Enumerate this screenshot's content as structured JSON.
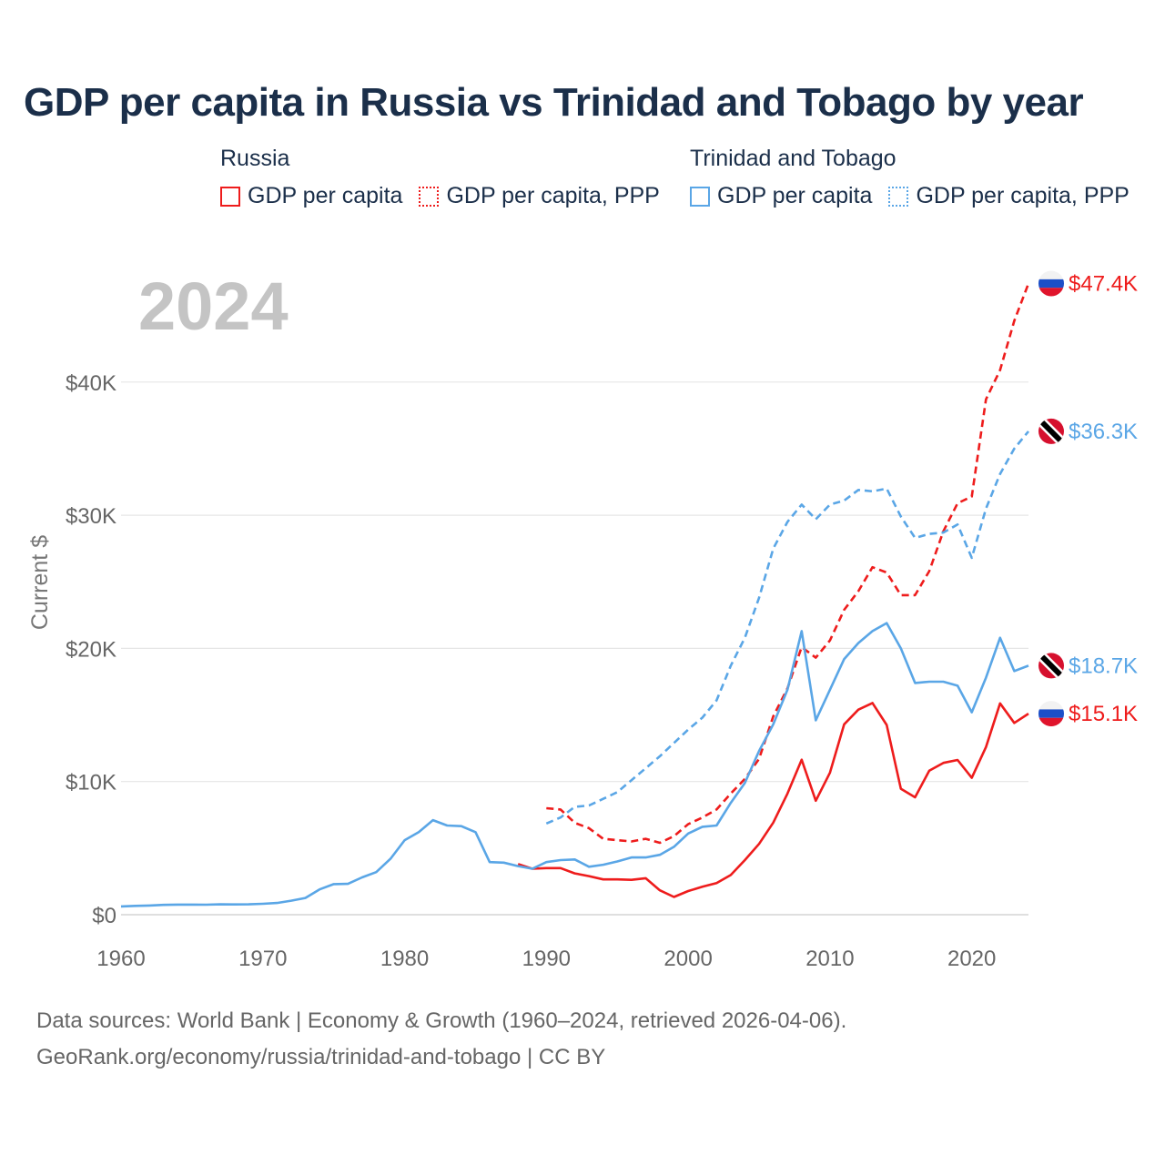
{
  "title": "GDP per capita in Russia vs Trinidad and Tobago by year",
  "legend": {
    "groups": [
      {
        "country": "Russia",
        "color": "#ee1c1c",
        "items": [
          "GDP per capita",
          "GDP per capita, PPP"
        ]
      },
      {
        "country": "Trinidad and Tobago",
        "color": "#5aa6e6",
        "items": [
          "GDP per capita",
          "GDP per capita, PPP"
        ]
      }
    ]
  },
  "year_watermark": "2024",
  "chart_data": {
    "type": "line",
    "title": "GDP per capita in Russia vs Trinidad and Tobago by year",
    "xlabel": "",
    "ylabel": "Current $",
    "xlim": [
      1960,
      2024
    ],
    "ylim": [
      0,
      47400
    ],
    "x_ticks": [
      1960,
      1970,
      1980,
      1990,
      2000,
      2010,
      2020
    ],
    "x_tick_labels": [
      "1960",
      "1970",
      "1980",
      "1990",
      "2000",
      "2010",
      "2020"
    ],
    "y_ticks": [
      0,
      10000,
      20000,
      30000,
      40000
    ],
    "y_tick_labels": [
      "$0",
      "$10K",
      "$20K",
      "$30K",
      "$40K"
    ],
    "grid": true,
    "series": [
      {
        "name": "Russia — GDP per capita",
        "color": "#ee1c1c",
        "dash": "solid",
        "end_label": "$15.1K",
        "flag": "russia",
        "x": [
          1988,
          1989,
          1990,
          1991,
          1992,
          1993,
          1994,
          1995,
          1996,
          1997,
          1998,
          1999,
          2000,
          2001,
          2002,
          2003,
          2004,
          2005,
          2006,
          2007,
          2008,
          2009,
          2010,
          2011,
          2012,
          2013,
          2014,
          2015,
          2016,
          2017,
          2018,
          2019,
          2020,
          2021,
          2022,
          2023,
          2024
        ],
        "y": [
          3800,
          3450,
          3500,
          3500,
          3100,
          2900,
          2650,
          2650,
          2620,
          2740,
          1830,
          1330,
          1780,
          2100,
          2380,
          2980,
          4100,
          5320,
          6920,
          9100,
          11640,
          8560,
          10670,
          14300,
          15400,
          15900,
          14250,
          9460,
          8820,
          10810,
          11400,
          11620,
          10280,
          12590,
          15870,
          14400,
          15100
        ]
      },
      {
        "name": "Russia — GDP per capita, PPP",
        "color": "#ee1c1c",
        "dash": "dashed",
        "end_label": "$47.4K",
        "flag": "russia",
        "x": [
          1990,
          1991,
          1992,
          1993,
          1994,
          1995,
          1996,
          1997,
          1998,
          1999,
          2000,
          2001,
          2002,
          2003,
          2004,
          2005,
          2006,
          2007,
          2008,
          2009,
          2010,
          2011,
          2012,
          2013,
          2014,
          2015,
          2016,
          2017,
          2018,
          2019,
          2020,
          2021,
          2022,
          2023,
          2024
        ],
        "y": [
          8000,
          7900,
          6900,
          6500,
          5700,
          5600,
          5500,
          5700,
          5400,
          5900,
          6800,
          7300,
          7900,
          9100,
          10200,
          11700,
          14900,
          17000,
          20100,
          19300,
          20600,
          22900,
          24300,
          26100,
          25700,
          24000,
          24000,
          25800,
          28800,
          30900,
          31400,
          38700,
          40900,
          44600,
          47400
        ]
      },
      {
        "name": "Trinidad and Tobago — GDP per capita",
        "color": "#5aa6e6",
        "dash": "solid",
        "end_label": "$18.7K",
        "flag": "trinidad",
        "x": [
          1960,
          1961,
          1962,
          1963,
          1964,
          1965,
          1966,
          1967,
          1968,
          1969,
          1970,
          1971,
          1972,
          1973,
          1974,
          1975,
          1976,
          1977,
          1978,
          1979,
          1980,
          1981,
          1982,
          1983,
          1984,
          1985,
          1986,
          1987,
          1988,
          1989,
          1990,
          1991,
          1992,
          1993,
          1994,
          1995,
          1996,
          1997,
          1998,
          1999,
          2000,
          2001,
          2002,
          2003,
          2004,
          2005,
          2006,
          2007,
          2008,
          2009,
          2010,
          2011,
          2012,
          2013,
          2014,
          2015,
          2016,
          2017,
          2018,
          2019,
          2020,
          2021,
          2022,
          2023,
          2024
        ],
        "y": [
          620,
          660,
          690,
          740,
          760,
          760,
          750,
          780,
          770,
          780,
          820,
          880,
          1050,
          1260,
          1900,
          2300,
          2320,
          2800,
          3200,
          4200,
          5600,
          6200,
          7100,
          6700,
          6650,
          6200,
          3950,
          3910,
          3650,
          3450,
          3950,
          4100,
          4150,
          3600,
          3750,
          4000,
          4300,
          4300,
          4500,
          5100,
          6100,
          6600,
          6700,
          8400,
          9900,
          12300,
          14300,
          16900,
          21300,
          14600,
          16900,
          19200,
          20400,
          21300,
          21900,
          20000,
          17400,
          17500,
          17500,
          17200,
          15200,
          17800,
          20800,
          18300,
          18700
        ]
      },
      {
        "name": "Trinidad and Tobago — GDP per capita, PPP",
        "color": "#5aa6e6",
        "dash": "dashed",
        "end_label": "$36.3K",
        "flag": "trinidad",
        "x": [
          1990,
          1991,
          1992,
          1993,
          1994,
          1995,
          1996,
          1997,
          1998,
          1999,
          2000,
          2001,
          2002,
          2003,
          2004,
          2005,
          2006,
          2007,
          2008,
          2009,
          2010,
          2011,
          2012,
          2013,
          2014,
          2015,
          2016,
          2017,
          2018,
          2019,
          2020,
          2021,
          2022,
          2023,
          2024
        ],
        "y": [
          6850,
          7300,
          8100,
          8200,
          8700,
          9200,
          10100,
          11000,
          11900,
          12900,
          13900,
          14800,
          16100,
          18700,
          20800,
          23800,
          27500,
          29500,
          30800,
          29700,
          30800,
          31100,
          31900,
          31800,
          32000,
          29900,
          28300,
          28600,
          28700,
          29300,
          26800,
          30500,
          33100,
          35000,
          36300
        ]
      }
    ]
  },
  "source": {
    "line1": "Data sources: World Bank | Economy & Growth (1960–2024, retrieved 2026-04-06).",
    "line2": "GeoRank.org/economy/russia/trinidad-and-tobago | CC BY"
  }
}
